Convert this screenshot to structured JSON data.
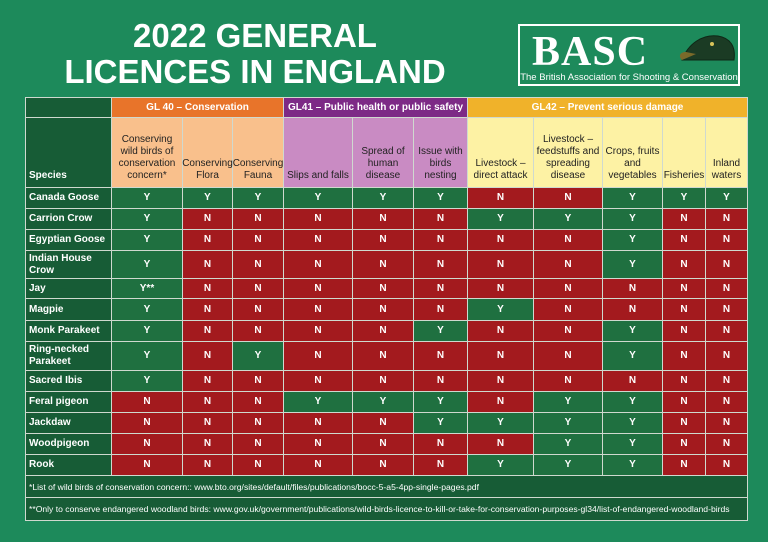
{
  "header": {
    "title_lines": [
      "2022 GENERAL",
      "LICENCES IN ENGLAND"
    ],
    "logo": {
      "name": "BASC",
      "tagline": "The British Association for Shooting & Conservation"
    }
  },
  "table": {
    "species_header": "Species",
    "groups": [
      {
        "label": "GL 40 – Conservation",
        "columns": [
          "Conserving wild birds of conservation concern*",
          "Conserving Flora",
          "Conserving Fauna"
        ]
      },
      {
        "label": "GL41 – Public health or public safety",
        "columns": [
          "Slips and falls",
          "Spread of human disease",
          "Issue with birds nesting"
        ]
      },
      {
        "label": "GL42 – Prevent serious damage",
        "columns": [
          "Livestock – direct attack",
          "Livestock – feedstuffs and spreading disease",
          "Crops, fruits and vegetables",
          "Fisheries",
          "Inland waters"
        ]
      }
    ],
    "rows": [
      {
        "species": "Canada Goose",
        "cells": [
          "Y",
          "Y",
          "Y",
          "Y",
          "Y",
          "Y",
          "N",
          "N",
          "Y",
          "Y",
          "Y"
        ]
      },
      {
        "species": "Carrion Crow",
        "cells": [
          "Y",
          "N",
          "N",
          "N",
          "N",
          "N",
          "Y",
          "Y",
          "Y",
          "N",
          "N"
        ]
      },
      {
        "species": "Egyptian Goose",
        "cells": [
          "Y",
          "N",
          "N",
          "N",
          "N",
          "N",
          "N",
          "N",
          "Y",
          "N",
          "N"
        ]
      },
      {
        "species": "Indian House Crow",
        "cells": [
          "Y",
          "N",
          "N",
          "N",
          "N",
          "N",
          "N",
          "N",
          "Y",
          "N",
          "N"
        ]
      },
      {
        "species": "Jay",
        "cells": [
          "Y**",
          "N",
          "N",
          "N",
          "N",
          "N",
          "N",
          "N",
          "N",
          "N",
          "N"
        ]
      },
      {
        "species": "Magpie",
        "cells": [
          "Y",
          "N",
          "N",
          "N",
          "N",
          "N",
          "Y",
          "N",
          "N",
          "N",
          "N"
        ]
      },
      {
        "species": "Monk Parakeet",
        "cells": [
          "Y",
          "N",
          "N",
          "N",
          "N",
          "Y",
          "N",
          "N",
          "Y",
          "N",
          "N"
        ]
      },
      {
        "species": "Ring-necked Parakeet",
        "cells": [
          "Y",
          "N",
          "Y",
          "N",
          "N",
          "N",
          "N",
          "N",
          "Y",
          "N",
          "N"
        ]
      },
      {
        "species": "Sacred Ibis",
        "cells": [
          "Y",
          "N",
          "N",
          "N",
          "N",
          "N",
          "N",
          "N",
          "N",
          "N",
          "N"
        ]
      },
      {
        "species": "Feral pigeon",
        "cells": [
          "N",
          "N",
          "N",
          "Y",
          "Y",
          "Y",
          "N",
          "Y",
          "Y",
          "N",
          "N"
        ]
      },
      {
        "species": "Jackdaw",
        "cells": [
          "N",
          "N",
          "N",
          "N",
          "N",
          "Y",
          "Y",
          "Y",
          "Y",
          "N",
          "N"
        ]
      },
      {
        "species": "Woodpigeon",
        "cells": [
          "N",
          "N",
          "N",
          "N",
          "N",
          "N",
          "N",
          "Y",
          "Y",
          "N",
          "N"
        ]
      },
      {
        "species": "Rook",
        "cells": [
          "N",
          "N",
          "N",
          "N",
          "N",
          "N",
          "Y",
          "Y",
          "Y",
          "N",
          "N"
        ]
      }
    ]
  },
  "footnotes": [
    "*List of wild birds of conservation concern:: www.bto.org/sites/default/files/publications/bocc-5-a5-4pp-single-pages.pdf",
    "**Only to conserve endangered woodland birds: www.gov.uk/government/publications/wild-birds-licence-to-kill-or-take-for-conservation-purposes-gl34/list-of-endangered-woodland-birds"
  ]
}
